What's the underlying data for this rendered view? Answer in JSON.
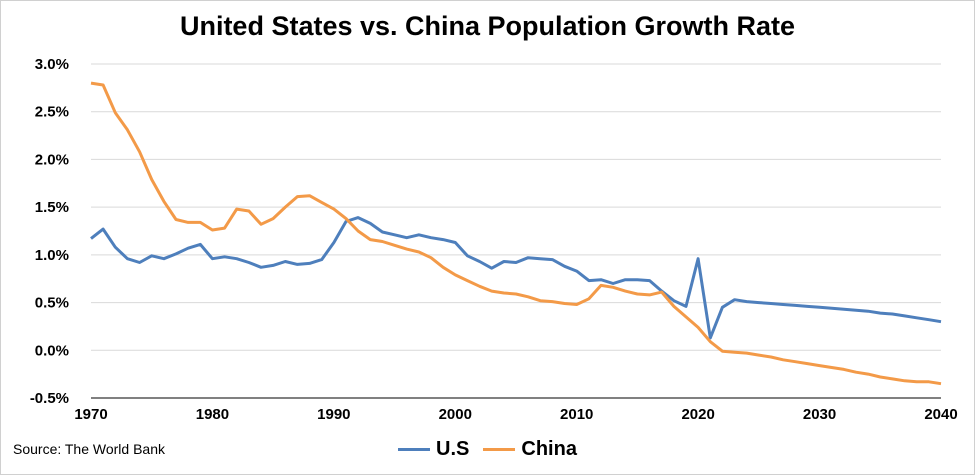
{
  "chart_data": {
    "type": "line",
    "title": "United States vs. China Population Growth Rate",
    "xlim": [
      1970,
      2040
    ],
    "ylim": [
      -0.5,
      3.0
    ],
    "x_ticks": [
      "1970",
      "1980",
      "1990",
      "2000",
      "2010",
      "2020",
      "2030",
      "2040"
    ],
    "y_ticks": [
      "3.0%",
      "2.5%",
      "2.0%",
      "1.5%",
      "1.0%",
      "0.5%",
      "0.0%",
      "-0.5%"
    ],
    "grid": true,
    "legend_position": "bottom",
    "x": [
      1970,
      1971,
      1972,
      1973,
      1974,
      1975,
      1976,
      1977,
      1978,
      1979,
      1980,
      1981,
      1982,
      1983,
      1984,
      1985,
      1986,
      1987,
      1988,
      1989,
      1990,
      1991,
      1992,
      1993,
      1994,
      1995,
      1996,
      1997,
      1998,
      1999,
      2000,
      2001,
      2002,
      2003,
      2004,
      2005,
      2006,
      2007,
      2008,
      2009,
      2010,
      2011,
      2012,
      2013,
      2014,
      2015,
      2016,
      2017,
      2018,
      2019,
      2020,
      2021,
      2022,
      2023,
      2024,
      2025,
      2026,
      2027,
      2028,
      2029,
      2030,
      2031,
      2032,
      2033,
      2034,
      2035,
      2036,
      2037,
      2038,
      2039,
      2040
    ],
    "series": [
      {
        "name": "U.S",
        "color": "#4e7fbc",
        "values": [
          1.17,
          1.27,
          1.08,
          0.96,
          0.92,
          0.99,
          0.96,
          1.01,
          1.07,
          1.11,
          0.96,
          0.98,
          0.96,
          0.92,
          0.87,
          0.89,
          0.93,
          0.9,
          0.91,
          0.95,
          1.13,
          1.35,
          1.39,
          1.33,
          1.24,
          1.21,
          1.18,
          1.21,
          1.18,
          1.16,
          1.13,
          0.99,
          0.93,
          0.86,
          0.93,
          0.92,
          0.97,
          0.96,
          0.95,
          0.88,
          0.83,
          0.73,
          0.74,
          0.7,
          0.74,
          0.74,
          0.73,
          0.62,
          0.52,
          0.46,
          0.96,
          0.13,
          0.45,
          0.53,
          0.51,
          0.5,
          0.49,
          0.48,
          0.47,
          0.46,
          0.45,
          0.44,
          0.43,
          0.42,
          0.41,
          0.39,
          0.38,
          0.36,
          0.34,
          0.32,
          0.3
        ]
      },
      {
        "name": "China",
        "color": "#f39a48",
        "values": [
          2.8,
          2.78,
          2.49,
          2.31,
          2.08,
          1.79,
          1.56,
          1.37,
          1.34,
          1.34,
          1.26,
          1.28,
          1.48,
          1.46,
          1.32,
          1.38,
          1.5,
          1.61,
          1.62,
          1.55,
          1.48,
          1.38,
          1.25,
          1.16,
          1.14,
          1.1,
          1.06,
          1.03,
          0.97,
          0.87,
          0.79,
          0.73,
          0.67,
          0.62,
          0.6,
          0.59,
          0.56,
          0.52,
          0.51,
          0.49,
          0.48,
          0.54,
          0.68,
          0.66,
          0.62,
          0.59,
          0.58,
          0.61,
          0.46,
          0.35,
          0.24,
          0.09,
          -0.01,
          -0.02,
          -0.03,
          -0.05,
          -0.07,
          -0.1,
          -0.12,
          -0.14,
          -0.16,
          -0.18,
          -0.2,
          -0.23,
          -0.25,
          -0.28,
          -0.3,
          -0.32,
          -0.33,
          -0.33,
          -0.35
        ]
      }
    ]
  },
  "source": "Source: The World Bank"
}
